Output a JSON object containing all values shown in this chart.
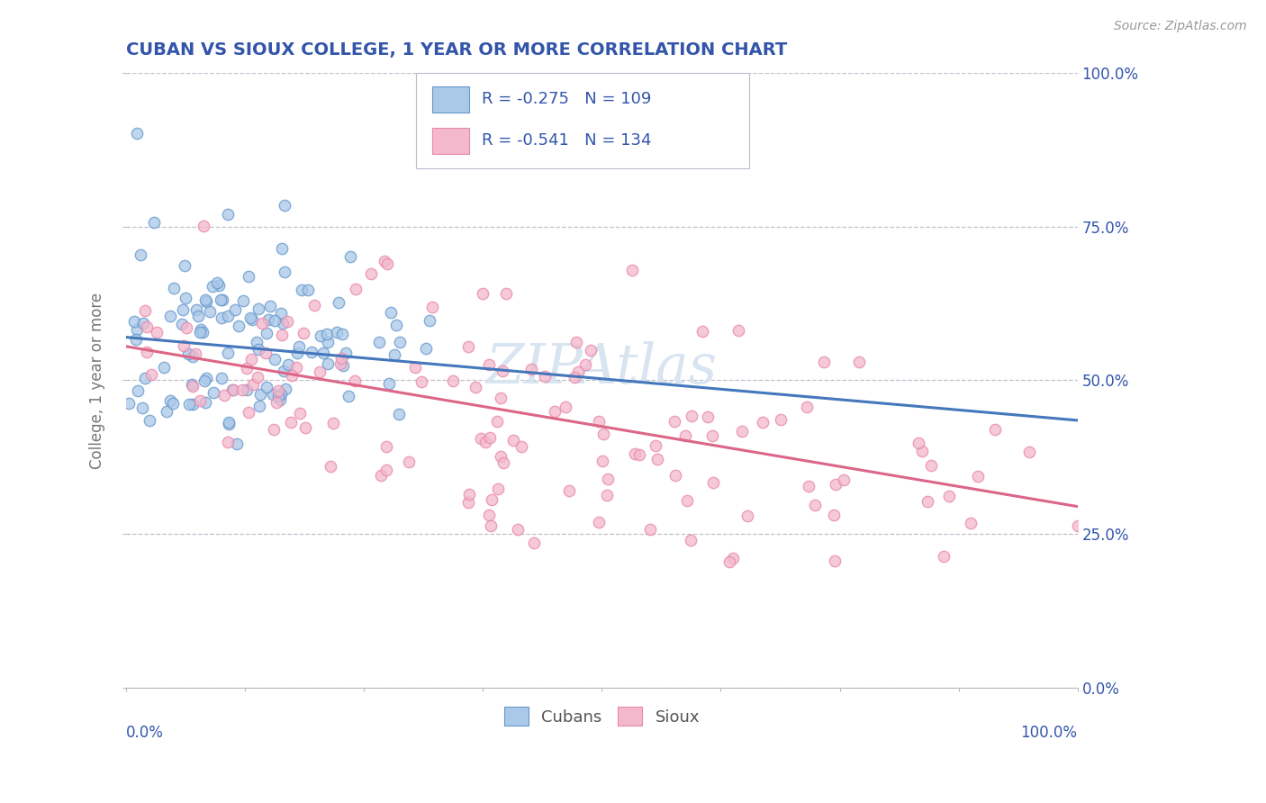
{
  "title": "CUBAN VS SIOUX COLLEGE, 1 YEAR OR MORE CORRELATION CHART",
  "source": "Source: ZipAtlas.com",
  "ylabel": "College, 1 year or more",
  "cubans": {
    "R": -0.275,
    "N": 109,
    "scatter_color": "#aac8e8",
    "edge_color": "#6699cc",
    "line_color": "#4477bb"
  },
  "sioux": {
    "R": -0.541,
    "N": 134,
    "scatter_color": "#f4b8cc",
    "edge_color": "#e888aa",
    "line_color": "#dd6688"
  },
  "background_color": "#ffffff",
  "grid_color": "#c0c0d0",
  "title_color": "#3355aa",
  "legend_text_color": "#3355aa",
  "legend_neg_color": "#cc3344",
  "right_label_color": "#3355aa",
  "watermark": "ZIPAtlas",
  "watermark_color": "#d8e4f0",
  "xlim": [
    0.0,
    1.0
  ],
  "ylim": [
    0.0,
    1.0
  ],
  "blue_line_y0": 0.57,
  "blue_line_y1": 0.435,
  "pink_line_y0": 0.555,
  "pink_line_y1": 0.295
}
